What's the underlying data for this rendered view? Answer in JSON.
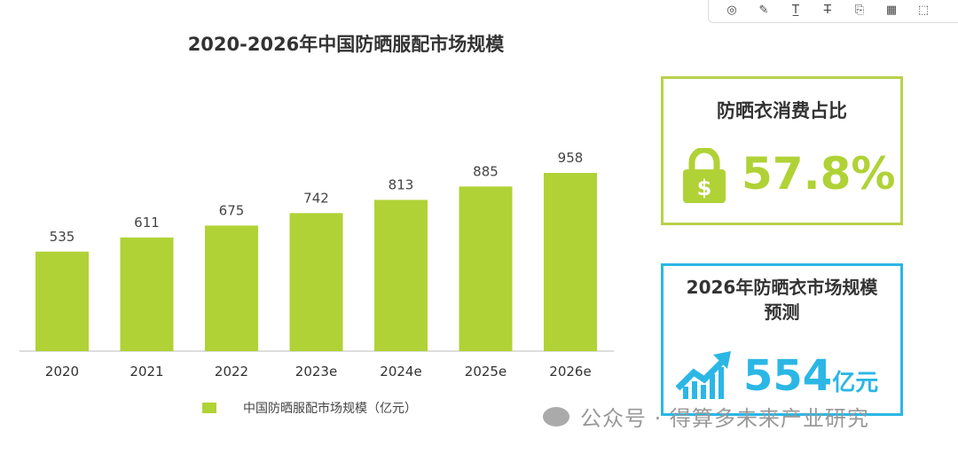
{
  "toolbar": {
    "icons": [
      "comment-icon",
      "pen-icon",
      "text-underline-icon",
      "strikethrough-icon",
      "translate-icon",
      "highlight-icon",
      "crop-icon"
    ]
  },
  "chart_data": {
    "type": "bar",
    "title": "2020-2026年中国防晒服配市场规模",
    "categories": [
      "2020",
      "2021",
      "2022",
      "2023e",
      "2024e",
      "2025e",
      "2026e"
    ],
    "series": [
      {
        "name": "中国防晒服配市场规模（亿元）",
        "values": [
          535,
          611,
          675,
          742,
          813,
          885,
          958
        ]
      }
    ],
    "ylim": [
      0,
      1000
    ],
    "grid": false,
    "legend": "bottom",
    "color": "#b0d236"
  },
  "card1": {
    "title": "防晒衣消费占比",
    "value": "57.8%",
    "icon": "lock-dollar-icon",
    "color": "#b0d236"
  },
  "card2": {
    "title_line1": "2026年防晒衣市场规模",
    "title_line2": "预测",
    "value": "554",
    "unit": "亿元",
    "icon": "growth-chart-icon",
    "color": "#2bb7e5"
  },
  "watermark": "公众号 · 得算多未来产业研究"
}
